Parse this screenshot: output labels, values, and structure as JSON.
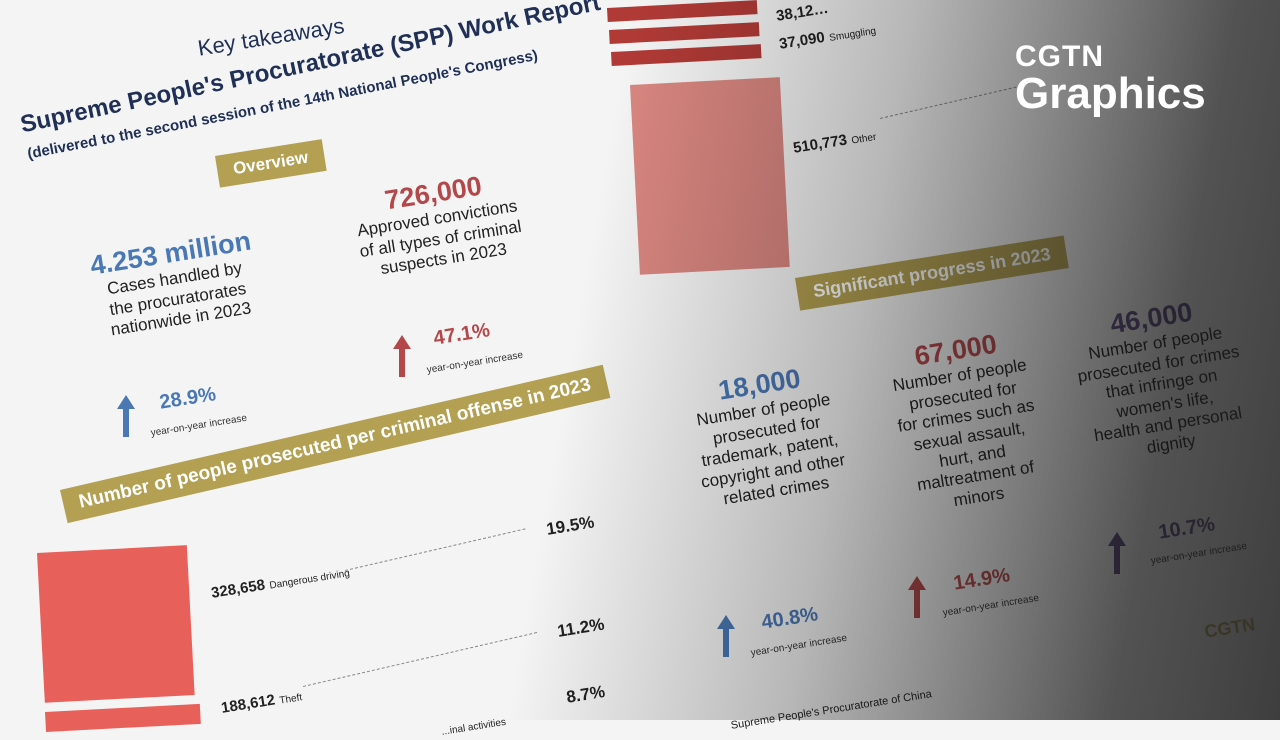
{
  "header": {
    "kicker": "Key takeaways",
    "title": "Supreme People's Procuratorate (SPP) Work Report",
    "subtitle": "(delivered to the second session of the 14th National People's Congress)"
  },
  "overview": {
    "label": "Overview",
    "stats": [
      {
        "value": "4.253 million",
        "lines": [
          "Cases handled by",
          "the procuratorates",
          "nationwide in 2023"
        ],
        "change": "28.9%",
        "change_label": "year-on-year increase",
        "color": "#4a78b5"
      },
      {
        "value": "726,000",
        "lines": [
          "Approved convictions",
          "of all types of criminal",
          "suspects in 2023"
        ],
        "change": "47.1%",
        "change_label": "year-on-year increase",
        "color": "#b4474a"
      }
    ]
  },
  "offenses": {
    "label": "Number of people prosecuted per criminal offense in 2023",
    "items": [
      {
        "count": "328,658",
        "name": "Dangerous driving",
        "share": "19.5%"
      },
      {
        "count": "188,612",
        "name": "Theft",
        "share": "11.2%"
      },
      {
        "count": "",
        "name": "...inal activities",
        "share": "8.7%"
      },
      {
        "count": "38,12…",
        "name": "",
        "share": ""
      },
      {
        "count": "37,090",
        "name": "Smuggling",
        "share": ""
      },
      {
        "count": "510,773",
        "name": "Other",
        "share": ""
      }
    ]
  },
  "progress": {
    "label": "Significant progress in 2023",
    "stats": [
      {
        "value": "18,000",
        "lines": [
          "Number of people",
          "prosecuted for",
          "trademark, patent,",
          "copyright and other",
          "related crimes"
        ],
        "change": "40.8%",
        "change_label": "year-on-year increase",
        "color": "#4a78b5"
      },
      {
        "value": "67,000",
        "lines": [
          "Number of people",
          "prosecuted for",
          "for crimes such as",
          "sexual assault,",
          "hurt, and",
          "maltreatment of",
          "minors"
        ],
        "change": "14.9%",
        "change_label": "year-on-year increase",
        "color": "#b4474a"
      },
      {
        "value": "46,000",
        "lines": [
          "Number of people",
          "prosecuted for crimes",
          "that infringe on",
          "women's life,",
          "health and personal",
          "dignity"
        ],
        "change": "10.7%",
        "change_label": "year-on-year increase",
        "color": "#5b4a7e"
      }
    ]
  },
  "source": "Supreme People's Procuratorate of China",
  "watermark": "CGTN",
  "logo": {
    "line1": "CGTN",
    "line2": "Graphics"
  },
  "colors": {
    "gold": "#b3a052",
    "bar": "#e8605a",
    "navy": "#1f2f55"
  }
}
